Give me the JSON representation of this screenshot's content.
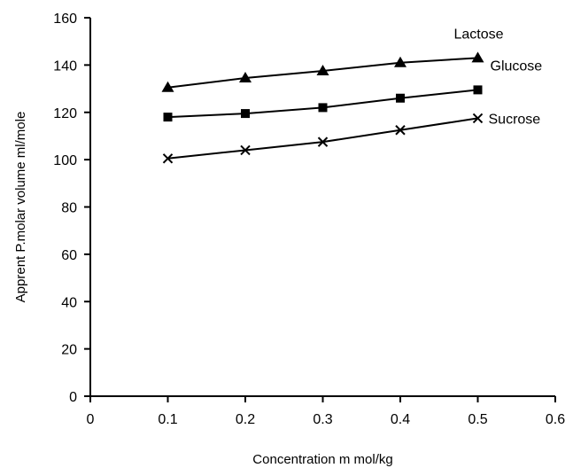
{
  "chart_data": {
    "type": "line",
    "xlabel": "Concentration m mol/kg",
    "ylabel": "Apprent P.molar volume ml/mole",
    "xlim": [
      0,
      0.6
    ],
    "ylim": [
      0,
      160
    ],
    "x_ticks": [
      "0",
      "0.1",
      "0.2",
      "0.3",
      "0.4",
      "0.5",
      "0.6"
    ],
    "y_ticks": [
      "0",
      "20",
      "40",
      "60",
      "80",
      "100",
      "120",
      "140",
      "160"
    ],
    "grid": false,
    "x": [
      0.1,
      0.2,
      0.3,
      0.4,
      0.5
    ],
    "series": [
      {
        "name": "Lactose",
        "marker": "triangle",
        "values": [
          130.5,
          134.5,
          137.5,
          141,
          143
        ]
      },
      {
        "name": "Glucose",
        "marker": "square",
        "values": [
          118,
          119.5,
          122,
          126,
          129.5
        ]
      },
      {
        "name": "Sucrose",
        "marker": "x",
        "values": [
          100.5,
          104,
          107.5,
          112.5,
          117.5
        ]
      }
    ]
  }
}
